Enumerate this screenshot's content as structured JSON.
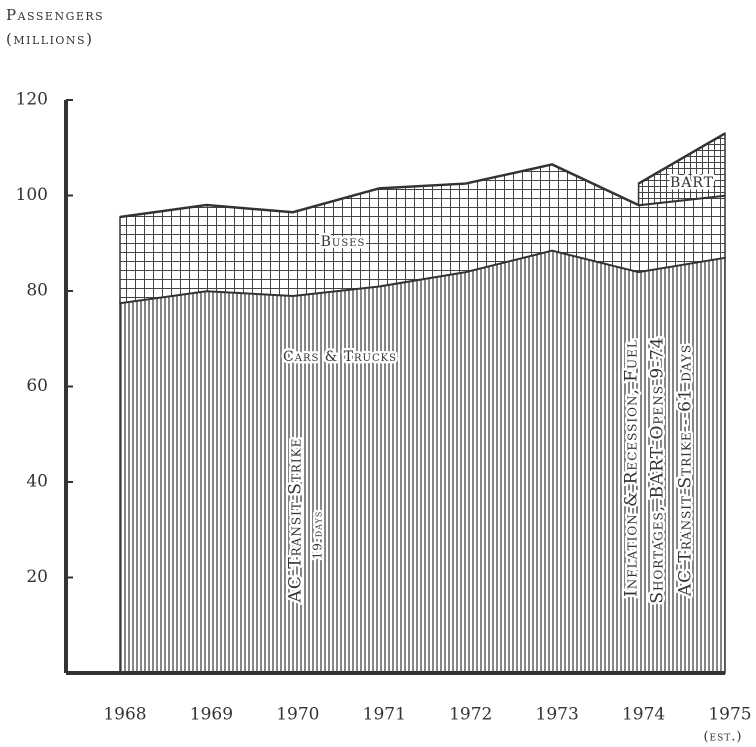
{
  "chart_data": {
    "type": "stacked-area",
    "y_label": [
      "Passengers",
      "(millions)"
    ],
    "categories": [
      "1968",
      "1969",
      "1970",
      "1971",
      "1972",
      "1973",
      "1974",
      "1975"
    ],
    "x_note": "(est.)",
    "series": [
      {
        "name": "Cars & Trucks",
        "color": "#333333",
        "pattern": "vertical",
        "values": [
          77.5,
          80,
          79,
          81,
          84,
          88.5,
          84,
          87
        ]
      },
      {
        "name": "Buses",
        "color": "#333333",
        "pattern": "grid",
        "values": [
          18,
          18,
          17.5,
          20.5,
          18.5,
          18,
          14,
          13
        ]
      },
      {
        "name": "BART",
        "color": "#333333",
        "pattern": "fine-grid",
        "values": [
          null,
          null,
          null,
          null,
          null,
          null,
          4.5,
          13
        ]
      }
    ],
    "ylim": [
      0,
      120
    ],
    "yticks": [
      20,
      40,
      60,
      80,
      100,
      120
    ],
    "annotations": [
      "AC Transit Strike",
      "19 days",
      "Inflation & Recession, Fuel",
      "Shortages, BART Opens 9-74",
      "AC Transit Strike - 61 days"
    ]
  }
}
